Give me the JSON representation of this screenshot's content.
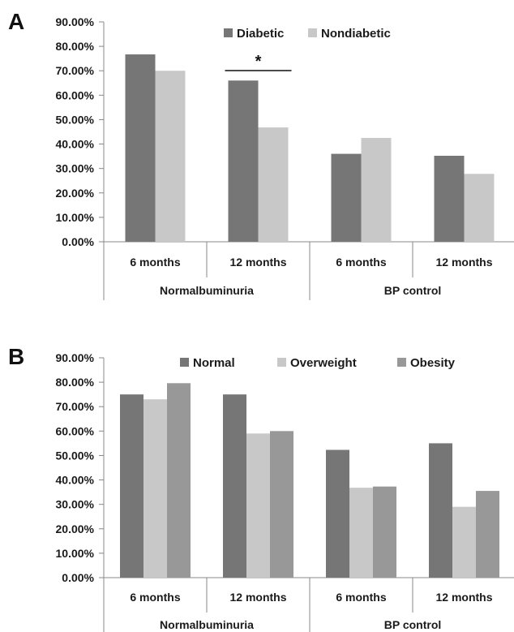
{
  "chart_data": [
    {
      "panel": "A",
      "type": "bar",
      "ylim": [
        0,
        90
      ],
      "yticks": [
        "0.00%",
        "10.00%",
        "20.00%",
        "30.00%",
        "40.00%",
        "50.00%",
        "60.00%",
        "70.00%",
        "80.00%",
        "90.00%"
      ],
      "categories": [
        "6 months",
        "12 months",
        "6 months",
        "12 months"
      ],
      "groups": [
        "Normalbuminuria",
        "BP control"
      ],
      "series": [
        {
          "name": "Diabetic",
          "color": "#767676",
          "values": [
            76.7,
            66.0,
            36.0,
            35.2
          ]
        },
        {
          "name": "Nondiabetic",
          "color": "#c8c8c8",
          "values": [
            70.0,
            46.8,
            42.5,
            27.8
          ]
        }
      ],
      "annotation": {
        "text": "*",
        "category_index": 1
      },
      "legend": "top-right",
      "grid": false
    },
    {
      "panel": "B",
      "type": "bar",
      "ylim": [
        0,
        90
      ],
      "yticks": [
        "0.00%",
        "10.00%",
        "20.00%",
        "30.00%",
        "40.00%",
        "50.00%",
        "60.00%",
        "70.00%",
        "80.00%",
        "90.00%"
      ],
      "categories": [
        "6 months",
        "12 months",
        "6 months",
        "12 months"
      ],
      "groups": [
        "Normalbuminuria",
        "BP control"
      ],
      "series": [
        {
          "name": "Normal",
          "color": "#767676",
          "values": [
            75.0,
            75.0,
            52.3,
            55.0
          ]
        },
        {
          "name": "Overweight",
          "color": "#c8c8c8",
          "values": [
            73.0,
            59.0,
            36.8,
            29.0
          ]
        },
        {
          "name": "Obesity",
          "color": "#989898",
          "values": [
            79.6,
            60.0,
            37.3,
            35.5
          ]
        }
      ],
      "legend": "top",
      "grid": false
    }
  ]
}
